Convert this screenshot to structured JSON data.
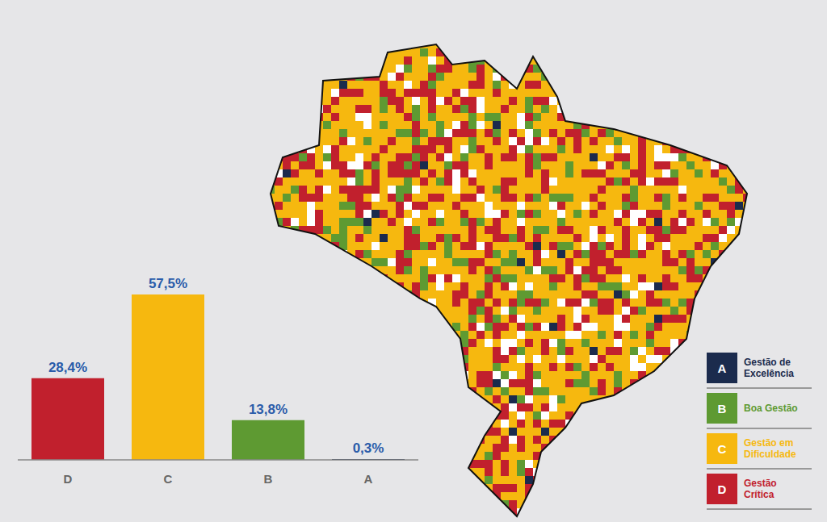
{
  "chart_data": {
    "type": "bar",
    "categories": [
      "D",
      "C",
      "B",
      "A"
    ],
    "values": [
      28.4,
      57.5,
      13.8,
      0.3
    ],
    "value_labels": [
      "28,4%",
      "57,5%",
      "13,8%",
      "0,3%"
    ],
    "colors": [
      "#c1202d",
      "#f6b80f",
      "#5e9a32",
      "#1b2b4d"
    ],
    "ylim": [
      0,
      60
    ],
    "yticks": [],
    "data_labels": true,
    "tick_labels": "x",
    "map_legend": [
      {
        "letter": "A",
        "label": "Gestão de Excelência",
        "color": "#1b2b4d"
      },
      {
        "letter": "B",
        "label": "Boa Gestão",
        "color": "#5e9a32"
      },
      {
        "letter": "C",
        "label": "Gestão em Dificuldade",
        "color": "#f6b80f"
      },
      {
        "letter": "D",
        "label": "Gestão Crítica",
        "color": "#c1202d"
      }
    ]
  }
}
